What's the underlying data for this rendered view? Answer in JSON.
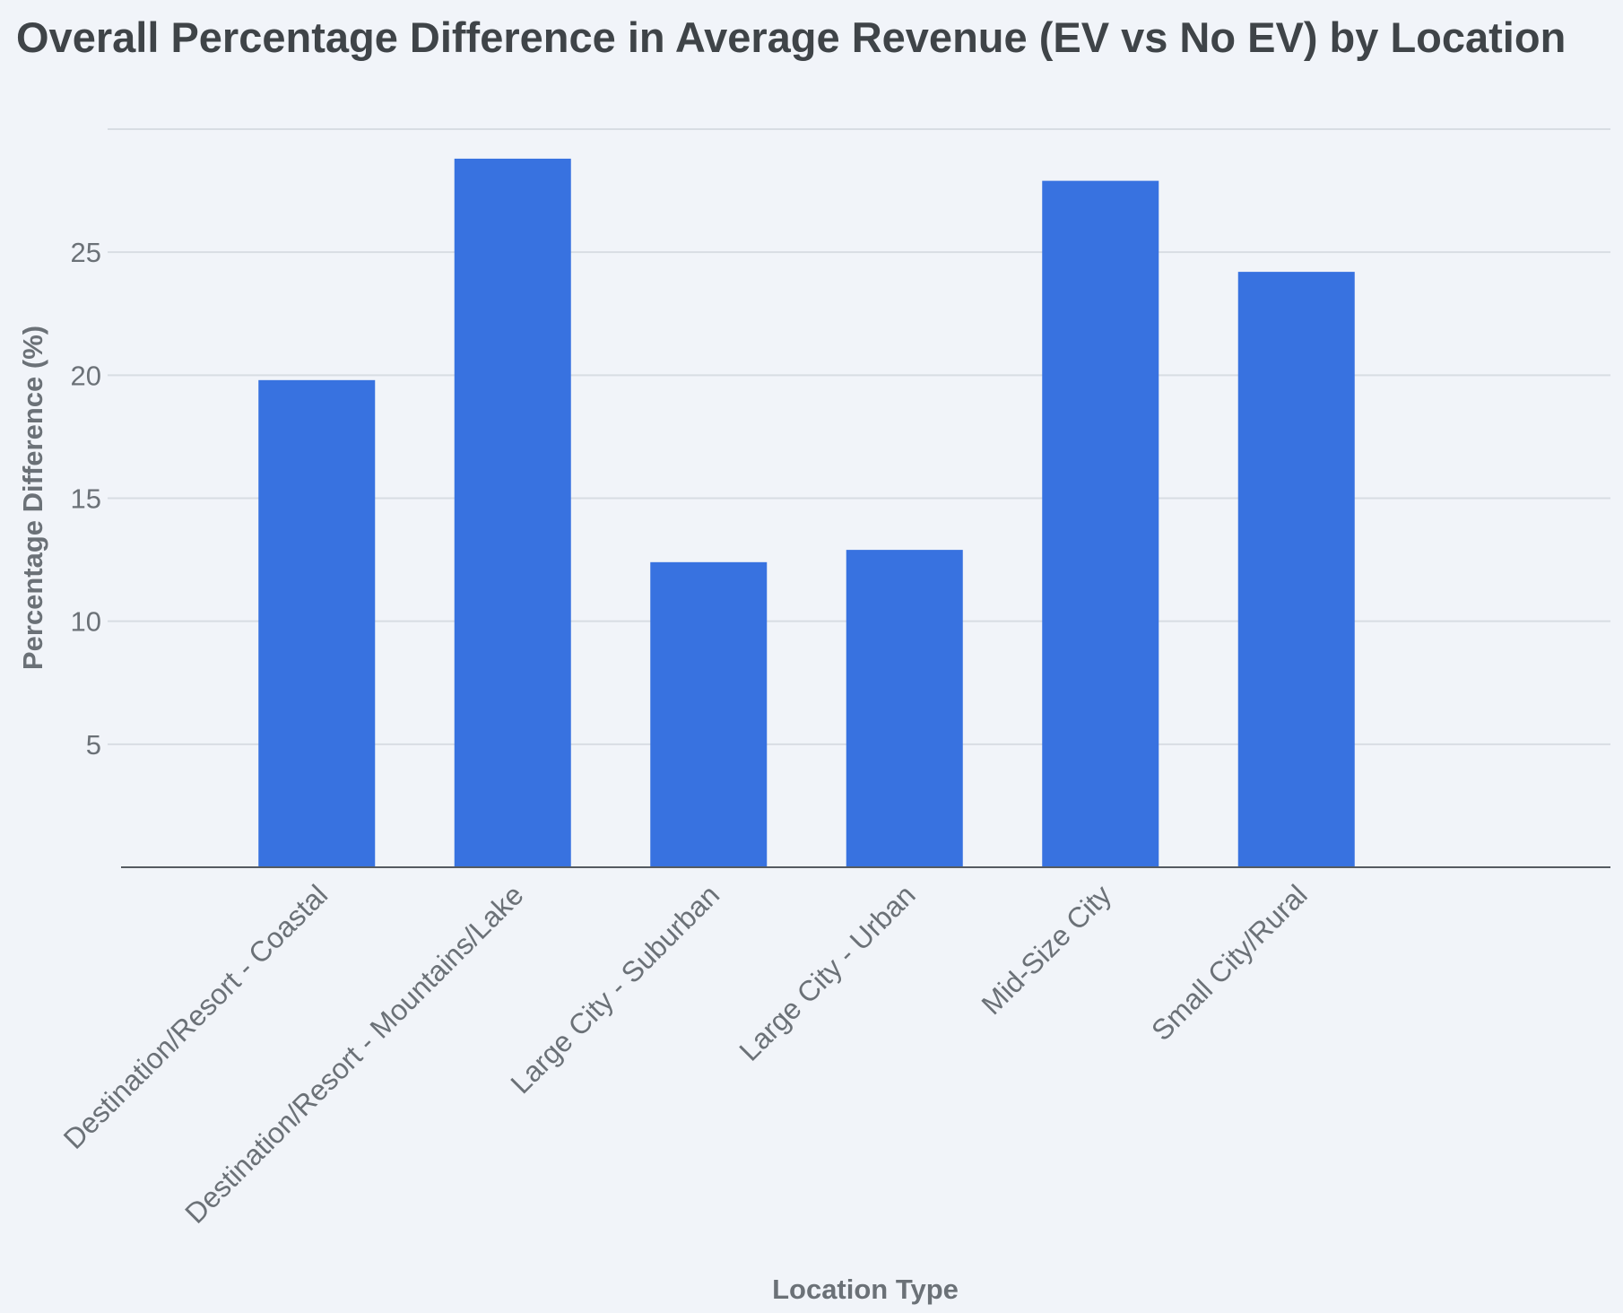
{
  "chart_data": {
    "type": "bar",
    "title": "Overall Percentage Difference in Average Revenue (EV vs No EV) by Location",
    "xlabel": "Location Type",
    "ylabel": "Percentage Difference (%)",
    "categories": [
      "Destination/Resort - Coastal",
      "Destination/Resort - Mountains/Lake",
      "Large City - Suburban",
      "Large City - Urban",
      "Mid-Size City",
      "Small City/Rural"
    ],
    "values": [
      19.8,
      28.8,
      12.4,
      12.9,
      27.9,
      24.2
    ],
    "yticks": [
      "5",
      "10",
      "15",
      "20",
      "25"
    ],
    "ylim": [
      0,
      30
    ],
    "grid": true,
    "legend": "none",
    "colors": {
      "bar": "#3872e0",
      "grid": "#d8dde3",
      "axis": "#555b61",
      "background": "#f1f4f9"
    }
  }
}
